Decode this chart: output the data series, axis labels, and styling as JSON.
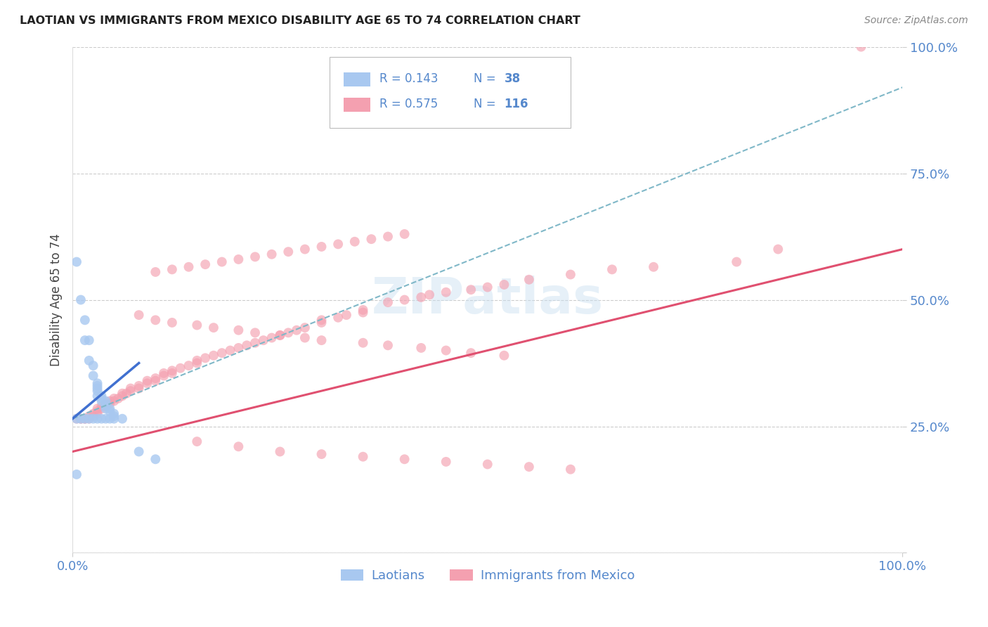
{
  "title": "LAOTIAN VS IMMIGRANTS FROM MEXICO DISABILITY AGE 65 TO 74 CORRELATION CHART",
  "source": "Source: ZipAtlas.com",
  "ylabel": "Disability Age 65 to 74",
  "xlim": [
    0,
    1.0
  ],
  "ylim": [
    0,
    1.0
  ],
  "ytick_positions": [
    0.0,
    0.25,
    0.5,
    0.75,
    1.0
  ],
  "ytick_labels": [
    "",
    "25.0%",
    "50.0%",
    "75.0%",
    "100.0%"
  ],
  "xtick_positions": [
    0.0,
    1.0
  ],
  "xtick_labels": [
    "0.0%",
    "100.0%"
  ],
  "watermark": "ZIPatlas",
  "legend_blue_R": "R = 0.143",
  "legend_blue_N": "N = 38",
  "legend_pink_R": "R = 0.575",
  "legend_pink_N": "N = 116",
  "blue_color": "#A8C8F0",
  "pink_color": "#F4A0B0",
  "blue_line_color": "#4070D0",
  "pink_line_color": "#E05070",
  "dashed_line_color": "#80B8C8",
  "background_color": "#FFFFFF",
  "grid_color": "#CCCCCC",
  "axis_label_color": "#5588CC",
  "title_color": "#222222",
  "source_color": "#888888",
  "blue_scatter_x": [
    0.005,
    0.01,
    0.015,
    0.015,
    0.02,
    0.02,
    0.025,
    0.025,
    0.03,
    0.03,
    0.03,
    0.03,
    0.03,
    0.035,
    0.035,
    0.035,
    0.04,
    0.04,
    0.04,
    0.04,
    0.045,
    0.045,
    0.05,
    0.05,
    0.005,
    0.01,
    0.015,
    0.02,
    0.025,
    0.03,
    0.035,
    0.04,
    0.045,
    0.05,
    0.06,
    0.08,
    0.1,
    0.005
  ],
  "blue_scatter_y": [
    0.575,
    0.5,
    0.46,
    0.42,
    0.42,
    0.38,
    0.37,
    0.35,
    0.335,
    0.33,
    0.325,
    0.32,
    0.31,
    0.31,
    0.305,
    0.3,
    0.3,
    0.295,
    0.29,
    0.285,
    0.285,
    0.28,
    0.275,
    0.27,
    0.265,
    0.265,
    0.265,
    0.265,
    0.265,
    0.265,
    0.265,
    0.265,
    0.265,
    0.265,
    0.265,
    0.2,
    0.185,
    0.155
  ],
  "pink_scatter_x": [
    0.005,
    0.01,
    0.01,
    0.015,
    0.015,
    0.02,
    0.02,
    0.025,
    0.025,
    0.03,
    0.03,
    0.03,
    0.035,
    0.035,
    0.04,
    0.04,
    0.045,
    0.045,
    0.05,
    0.05,
    0.055,
    0.06,
    0.06,
    0.065,
    0.07,
    0.07,
    0.08,
    0.08,
    0.09,
    0.09,
    0.1,
    0.1,
    0.11,
    0.11,
    0.12,
    0.12,
    0.13,
    0.14,
    0.15,
    0.15,
    0.16,
    0.17,
    0.18,
    0.19,
    0.2,
    0.21,
    0.22,
    0.23,
    0.24,
    0.25,
    0.26,
    0.27,
    0.28,
    0.3,
    0.3,
    0.32,
    0.33,
    0.35,
    0.35,
    0.38,
    0.4,
    0.42,
    0.43,
    0.45,
    0.48,
    0.5,
    0.52,
    0.55,
    0.6,
    0.65,
    0.7,
    0.8,
    0.85,
    0.95,
    0.1,
    0.12,
    0.14,
    0.16,
    0.18,
    0.2,
    0.22,
    0.24,
    0.26,
    0.28,
    0.3,
    0.32,
    0.34,
    0.36,
    0.38,
    0.4,
    0.15,
    0.2,
    0.25,
    0.3,
    0.35,
    0.4,
    0.45,
    0.5,
    0.55,
    0.6,
    0.08,
    0.1,
    0.12,
    0.15,
    0.17,
    0.2,
    0.22,
    0.25,
    0.28,
    0.3,
    0.35,
    0.38,
    0.42,
    0.45,
    0.48,
    0.52
  ],
  "pink_scatter_y": [
    0.265,
    0.265,
    0.265,
    0.265,
    0.265,
    0.265,
    0.27,
    0.27,
    0.275,
    0.275,
    0.28,
    0.285,
    0.285,
    0.29,
    0.29,
    0.295,
    0.295,
    0.3,
    0.3,
    0.305,
    0.305,
    0.31,
    0.315,
    0.315,
    0.32,
    0.325,
    0.325,
    0.33,
    0.335,
    0.34,
    0.34,
    0.345,
    0.35,
    0.355,
    0.355,
    0.36,
    0.365,
    0.37,
    0.375,
    0.38,
    0.385,
    0.39,
    0.395,
    0.4,
    0.405,
    0.41,
    0.415,
    0.42,
    0.425,
    0.43,
    0.435,
    0.44,
    0.445,
    0.455,
    0.46,
    0.465,
    0.47,
    0.475,
    0.48,
    0.495,
    0.5,
    0.505,
    0.51,
    0.515,
    0.52,
    0.525,
    0.53,
    0.54,
    0.55,
    0.56,
    0.565,
    0.575,
    0.6,
    1.0,
    0.555,
    0.56,
    0.565,
    0.57,
    0.575,
    0.58,
    0.585,
    0.59,
    0.595,
    0.6,
    0.605,
    0.61,
    0.615,
    0.62,
    0.625,
    0.63,
    0.22,
    0.21,
    0.2,
    0.195,
    0.19,
    0.185,
    0.18,
    0.175,
    0.17,
    0.165,
    0.47,
    0.46,
    0.455,
    0.45,
    0.445,
    0.44,
    0.435,
    0.43,
    0.425,
    0.42,
    0.415,
    0.41,
    0.405,
    0.4,
    0.395,
    0.39
  ],
  "blue_line_x": [
    0.0,
    0.08
  ],
  "blue_line_y": [
    0.265,
    0.375
  ],
  "pink_line_x": [
    0.0,
    1.0
  ],
  "pink_line_y": [
    0.2,
    0.6
  ],
  "dashed_line_x": [
    0.0,
    1.0
  ],
  "dashed_line_y": [
    0.265,
    0.92
  ]
}
